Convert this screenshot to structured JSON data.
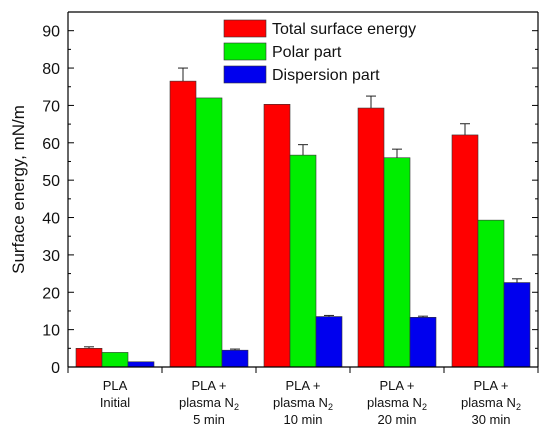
{
  "chart_data": {
    "type": "bar",
    "ylabel": "Surface energy, mN/m",
    "ylim": [
      0,
      95
    ],
    "yticks": [
      0,
      10,
      20,
      30,
      40,
      50,
      60,
      70,
      80,
      90
    ],
    "legend_position": "top-center",
    "grid": false,
    "categories": [
      {
        "lines": [
          "PLA",
          "Initial"
        ],
        "sub": null
      },
      {
        "lines": [
          "PLA +",
          "plasma N",
          "5 min"
        ],
        "sub": "2"
      },
      {
        "lines": [
          "PLA +",
          "plasma N",
          "10 min"
        ],
        "sub": "2"
      },
      {
        "lines": [
          "PLA +",
          "plasma N",
          "20 min"
        ],
        "sub": "2"
      },
      {
        "lines": [
          "PLA +",
          "plasma N",
          "30 min"
        ],
        "sub": "2"
      }
    ],
    "series": [
      {
        "name": "Total surface energy",
        "color": "#ff0000",
        "values": [
          5.0,
          76.5,
          70.3,
          69.3,
          62.1
        ],
        "errors": [
          0.4,
          3.5,
          0.0,
          3.2,
          3.0
        ]
      },
      {
        "name": "Polar part",
        "color": "#00ee00",
        "values": [
          3.9,
          72.0,
          56.7,
          56.0,
          39.3
        ],
        "errors": [
          0.0,
          0.0,
          2.8,
          2.3,
          0.0
        ]
      },
      {
        "name": "Dispersion part",
        "color": "#0000ee",
        "values": [
          1.4,
          4.5,
          13.5,
          13.3,
          22.6
        ],
        "errors": [
          0.0,
          0.3,
          0.3,
          0.3,
          1.0
        ]
      }
    ]
  }
}
